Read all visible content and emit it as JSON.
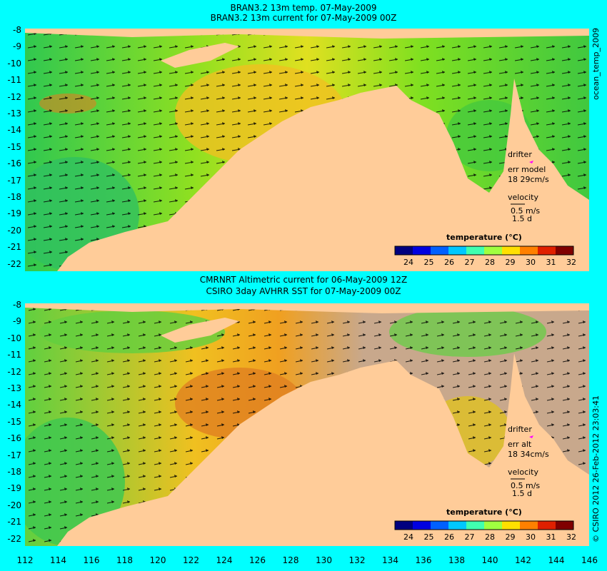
{
  "top_panel": {
    "title_line1": "BRAN3.2 13m temp. 07-May-2009",
    "title_line2": "BRAN3.2 13m current for 07-May-2009 00Z",
    "side_label": "ocean_temp_2009",
    "drifter_label": "drifter",
    "err_label": "err model",
    "err_value": "18 29cm/s",
    "velocity_label": "velocity",
    "velocity_scale": "0.5 m/s",
    "velocity_time": "1.5 d"
  },
  "bottom_panel": {
    "title_line1": "CMRNRT Altimetric current for 06-May-2009 12Z",
    "title_line2": "CSIRO 3day AVHRR SST for 07-May-2009 00Z",
    "side_label": "© CSIRO 2012  26-Feb-2012 23:03:41",
    "drifter_label": "drifter",
    "err_label": "err alt",
    "err_value": "18 34cm/s",
    "velocity_label": "velocity",
    "velocity_scale": "0.5 m/s",
    "velocity_time": "1.5 d"
  },
  "legend": {
    "title": "temperature (°C)",
    "ticks": [
      "24",
      "25",
      "26",
      "27",
      "28",
      "29",
      "30",
      "31",
      "32"
    ],
    "colors": [
      "#00007f",
      "#0000e0",
      "#0060ff",
      "#00c8ff",
      "#40ffb0",
      "#a0ff40",
      "#ffe000",
      "#ff8000",
      "#e02000",
      "#800000"
    ]
  },
  "axes": {
    "lat_labels": [
      "-8",
      "-9",
      "-10",
      "-11",
      "-12",
      "-13",
      "-14",
      "-15",
      "-16",
      "-17",
      "-18",
      "-19",
      "-20",
      "-21",
      "-22"
    ],
    "lon_labels": [
      "112",
      "114",
      "116",
      "118",
      "120",
      "122",
      "124",
      "126",
      "128",
      "130",
      "132",
      "134",
      "136",
      "138",
      "140",
      "142",
      "144",
      "146"
    ]
  },
  "colors": {
    "background": "#00ffff",
    "land": "#ffcc99",
    "no_data": "#c8a88c",
    "ocean_warm": "#f0c020",
    "ocean_mid": "#80e020",
    "ocean_cool": "#30c850"
  }
}
